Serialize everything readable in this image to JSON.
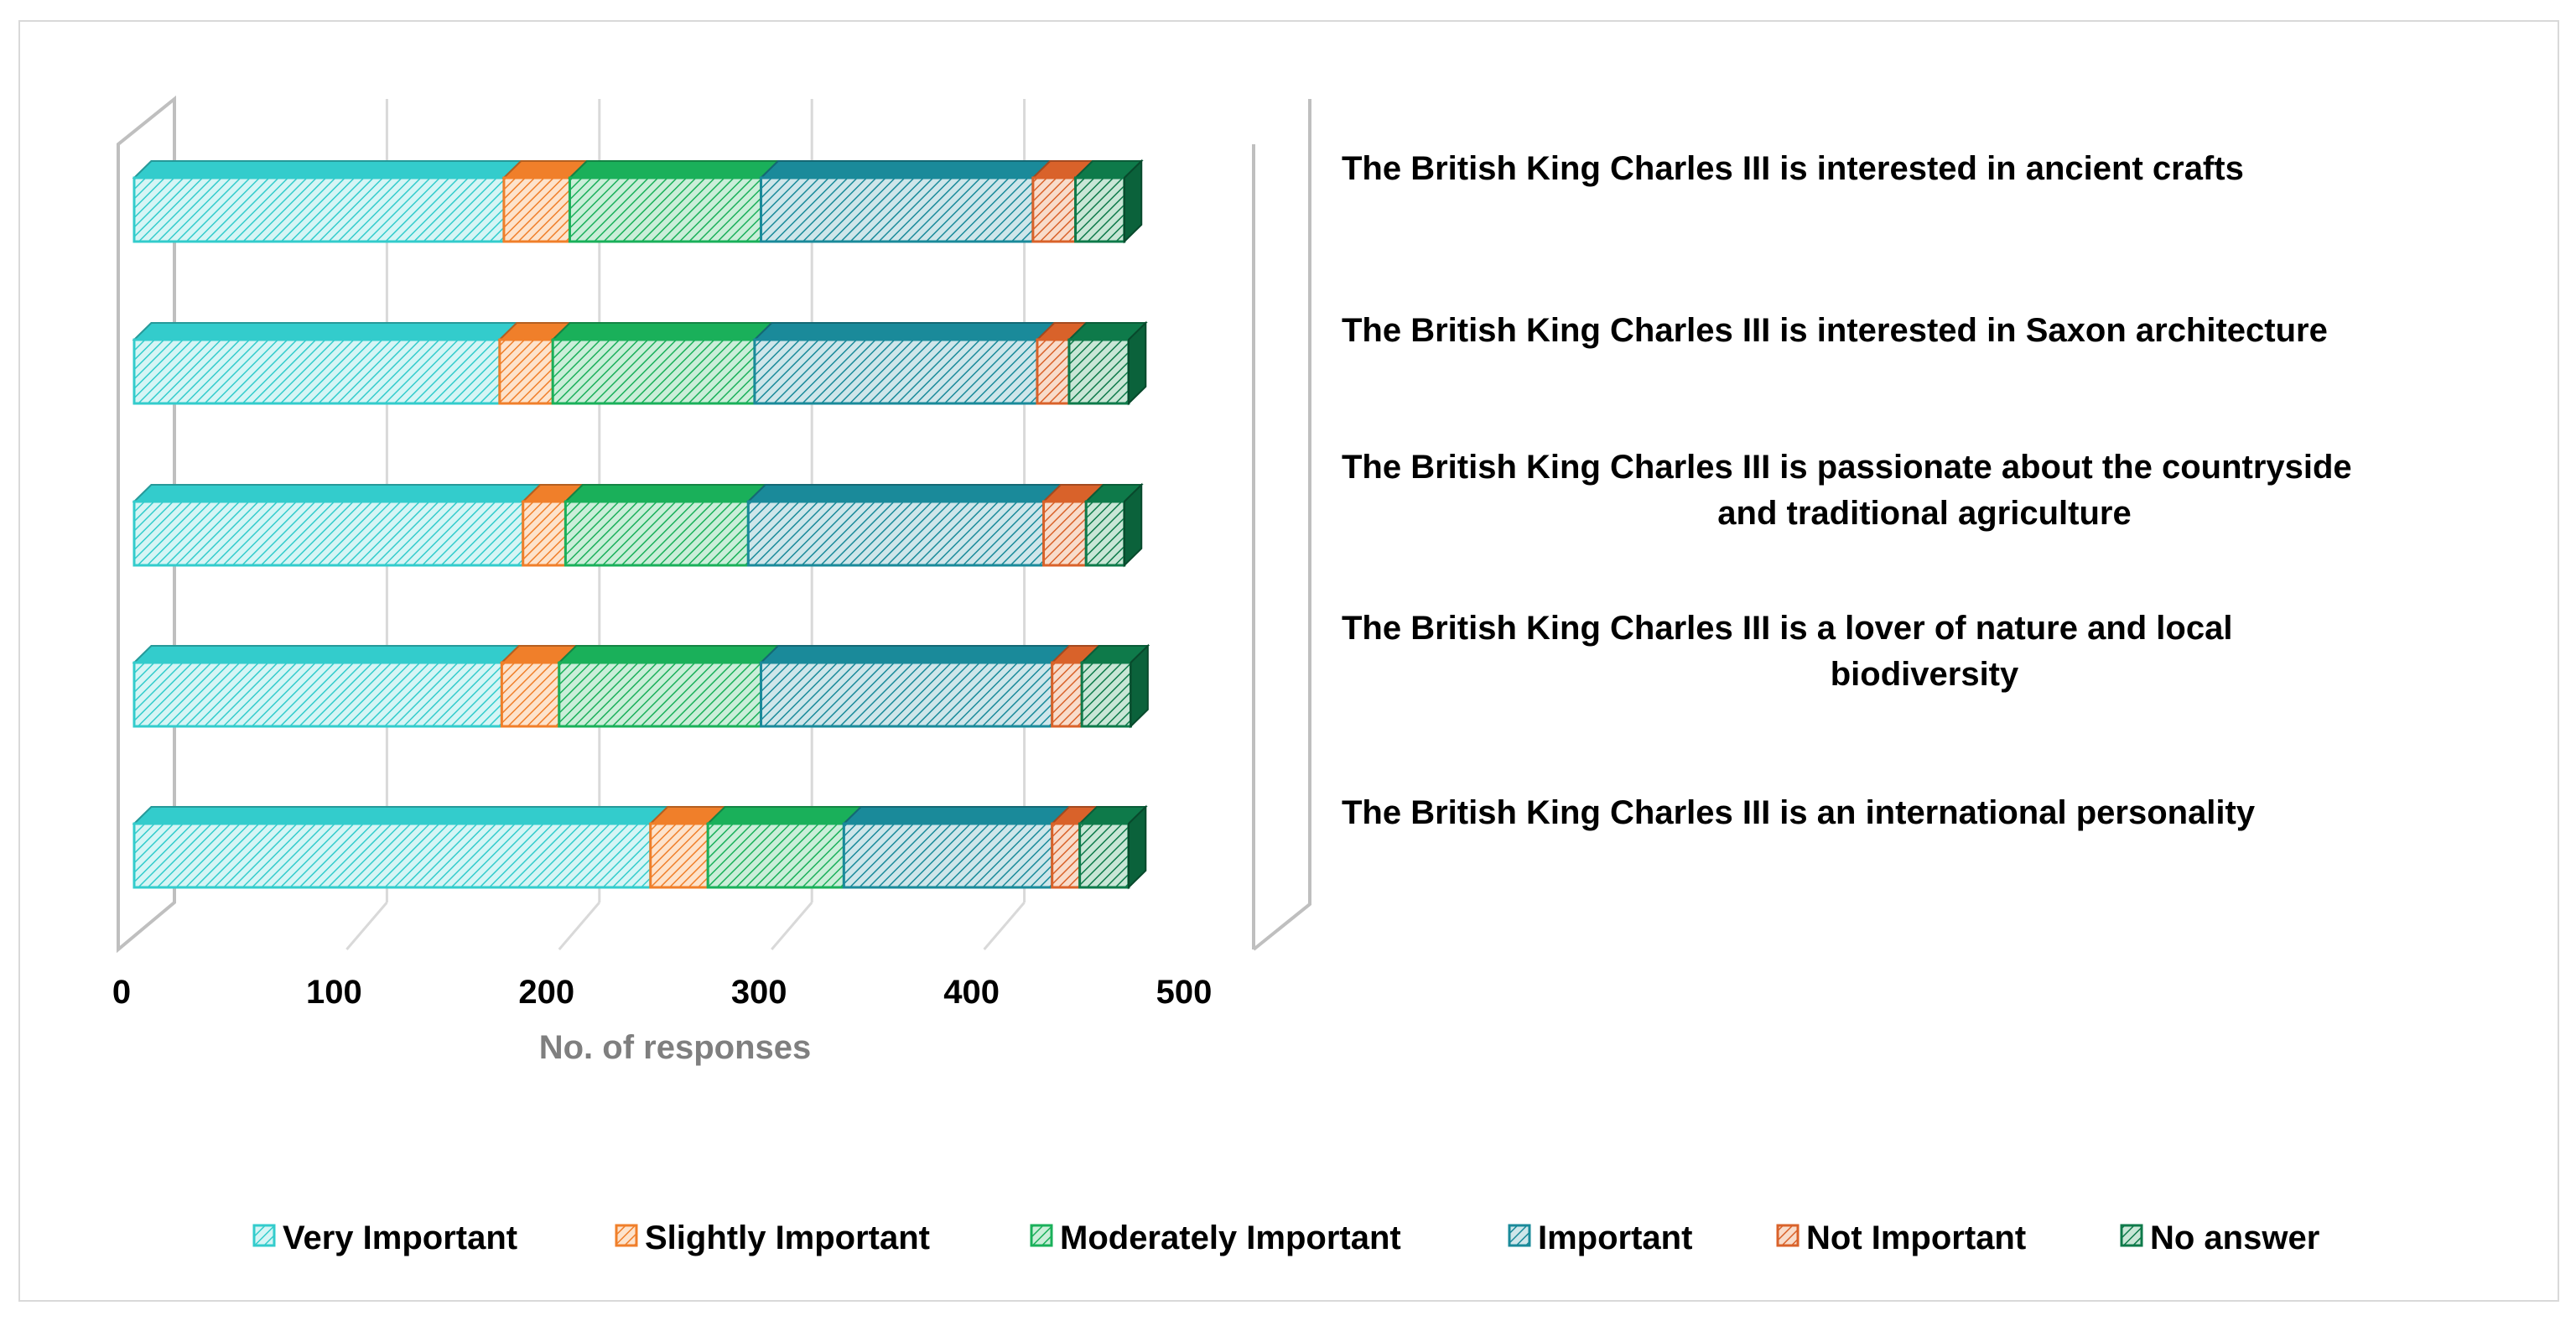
{
  "chart_data": {
    "type": "bar",
    "orientation": "horizontal",
    "stacked": true,
    "style": "3d",
    "xlabel": "No. of responses",
    "ylabel": "",
    "xlim": [
      0,
      500
    ],
    "xticks": [
      0,
      100,
      200,
      300,
      400,
      500
    ],
    "xtick_labels": [
      "0",
      "100",
      "200",
      "300",
      "400",
      "500"
    ],
    "grid": true,
    "legend_position": "bottom",
    "categories": [
      "The British King Charles III is interested in ancient crafts",
      "The British King Charles III is interested in Saxon architecture",
      "The British King Charles III is passionate about the countryside and traditional agriculture",
      "The British King Charles III is a lover of nature and local biodiversity",
      "The British King Charles III is an international personality"
    ],
    "category_label_lines": [
      [
        "The British King Charles III is interested in ancient crafts"
      ],
      [
        "The British King Charles III is interested in Saxon architecture"
      ],
      [
        "The British King Charles III is passionate about the countryside",
        "and traditional agriculture"
      ],
      [
        "The British King Charles III is a lover of nature and local",
        "biodiversity"
      ],
      [
        "The British King Charles III is an international personality"
      ]
    ],
    "series": [
      {
        "name": "Very Important",
        "color": "#33cccc",
        "fill": "#d6f5f5",
        "values": [
          174,
          172,
          183,
          173,
          243
        ]
      },
      {
        "name": "Slightly Important",
        "color": "#f07f2a",
        "fill": "#fde3cc",
        "values": [
          31,
          25,
          20,
          27,
          27
        ]
      },
      {
        "name": "Moderately Important",
        "color": "#1ab05a",
        "fill": "#cbeed9",
        "values": [
          90,
          95,
          86,
          95,
          64
        ]
      },
      {
        "name": "Important",
        "color": "#1a8a9a",
        "fill": "#cfe6ea",
        "values": [
          128,
          133,
          139,
          137,
          98
        ]
      },
      {
        "name": "Not Important",
        "color": "#d9622a",
        "fill": "#f8dccb",
        "values": [
          20,
          15,
          20,
          14,
          13
        ]
      },
      {
        "name": "No answer",
        "color": "#0e7a4a",
        "fill": "#c9e6d6",
        "values": [
          23,
          28,
          18,
          23,
          23
        ]
      }
    ]
  }
}
